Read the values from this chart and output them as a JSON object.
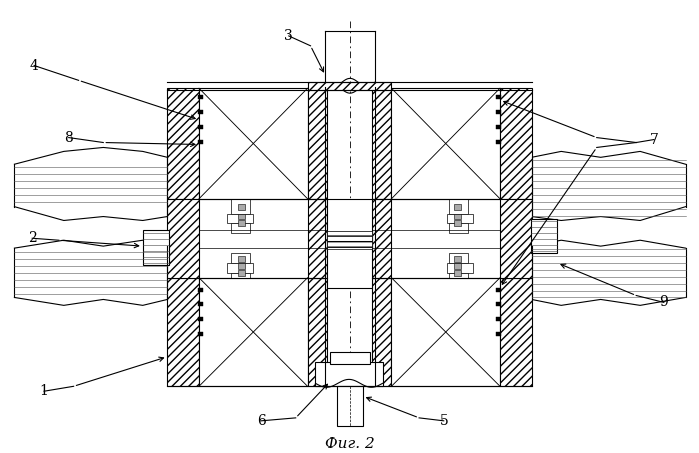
{
  "title": "Фиг. 2",
  "bg_color": "#ffffff",
  "line_color": "#000000",
  "lw": 0.8,
  "lw_thin": 0.5,
  "label_fontsize": 10,
  "caption_fontsize": 11
}
